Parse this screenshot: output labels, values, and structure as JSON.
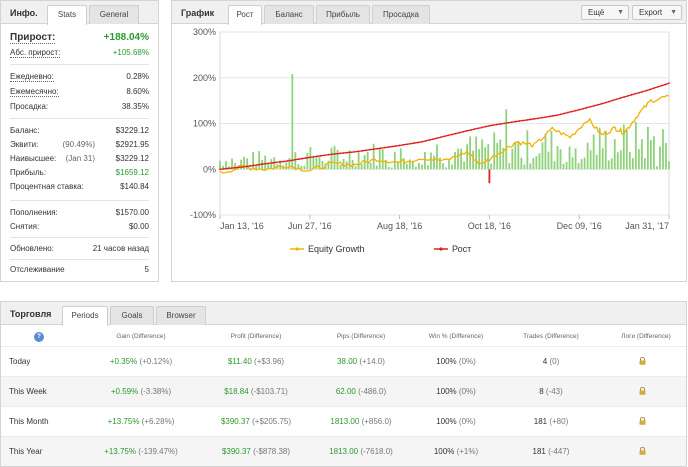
{
  "info": {
    "title": "Инфо.",
    "tabs": [
      "Stats",
      "General"
    ],
    "gain_label": "Прирост:",
    "gain_value": "+188.04%",
    "abs_label": "Абс. прирост:",
    "abs_value": "+105.68%",
    "daily_label": "Ежедневно:",
    "daily_value": "0.28%",
    "monthly_label": "Ежемесячно:",
    "monthly_value": "8.60%",
    "drawdown_label": "Просадка:",
    "drawdown_value": "38.35%",
    "balance_label": "Баланс:",
    "balance_value": "$3229.12",
    "equity_label": "Эквити:",
    "equity_pct": "(90.49%)",
    "equity_value": "$2921.95",
    "highest_label": "Наивысшее:",
    "highest_date": "(Jan 31)",
    "highest_value": "$3229.12",
    "profit_label": "Прибыль:",
    "profit_value": "$1659.12",
    "interest_label": "Процентная ставка:",
    "interest_value": "$140.84",
    "deposits_label": "Пополнения:",
    "deposits_value": "$1570.00",
    "withdrawals_label": "Снятия:",
    "withdrawals_value": "$0.00",
    "updated_label": "Обновлено:",
    "updated_value": "21 часов назад",
    "tracking_label": "Отслеживание",
    "tracking_value": "5"
  },
  "chart_panel": {
    "title": "График",
    "tabs": [
      "Рост",
      "Баланс",
      "Прибыль",
      "Просадка"
    ],
    "more_button": "Ещё",
    "export_button": "Export"
  },
  "chart_data": {
    "type": "line",
    "y_ticks": [
      "300%",
      "200%",
      "100%",
      "0%",
      "-100%"
    ],
    "ylim": [
      -100,
      300
    ],
    "x_ticks": [
      "Jan 13, '16",
      "Jun 27, '16",
      "Aug 18, '16",
      "Oct 18, '16",
      "Dec 09, '16",
      "Jan 31, '17"
    ],
    "legend": [
      "Equity Growth",
      "Рост"
    ],
    "series_colors": {
      "equity": "#f0b400",
      "growth": "#e02020",
      "bars": "#8fd27a"
    },
    "growth_points": [
      [
        0,
        0
      ],
      [
        0.05,
        5
      ],
      [
        0.1,
        12
      ],
      [
        0.15,
        18
      ],
      [
        0.2,
        26
      ],
      [
        0.25,
        33
      ],
      [
        0.3,
        38
      ],
      [
        0.35,
        45
      ],
      [
        0.4,
        52
      ],
      [
        0.45,
        60
      ],
      [
        0.5,
        72
      ],
      [
        0.55,
        84
      ],
      [
        0.6,
        95
      ],
      [
        0.65,
        103
      ],
      [
        0.7,
        110
      ],
      [
        0.75,
        118
      ],
      [
        0.8,
        130
      ],
      [
        0.85,
        143
      ],
      [
        0.9,
        158
      ],
      [
        0.95,
        172
      ],
      [
        1.0,
        188
      ]
    ],
    "equity_points": [
      [
        0,
        -8
      ],
      [
        0.05,
        5
      ],
      [
        0.1,
        0
      ],
      [
        0.15,
        8
      ],
      [
        0.2,
        -3
      ],
      [
        0.25,
        12
      ],
      [
        0.3,
        10
      ],
      [
        0.35,
        22
      ],
      [
        0.4,
        15
      ],
      [
        0.45,
        25
      ],
      [
        0.5,
        18
      ],
      [
        0.55,
        38
      ],
      [
        0.58,
        10
      ],
      [
        0.62,
        35
      ],
      [
        0.66,
        60
      ],
      [
        0.7,
        52
      ],
      [
        0.74,
        88
      ],
      [
        0.78,
        70
      ],
      [
        0.82,
        110
      ],
      [
        0.85,
        75
      ],
      [
        0.88,
        90
      ],
      [
        0.9,
        80
      ],
      [
        0.93,
        118
      ],
      [
        0.96,
        150
      ],
      [
        1.0,
        160
      ]
    ]
  },
  "trading": {
    "title": "Торговля",
    "tabs": [
      "Periods",
      "Goals",
      "Browser"
    ],
    "help_icon": "?",
    "headers": [
      "Gain (Difference)",
      "Profit (Difference)",
      "Pips (Difference)",
      "Win % (Difference)",
      "Trades (Difference)",
      "Логи (Difference)"
    ],
    "rows": [
      {
        "period": "Today",
        "gain": "+0.35%",
        "gain_diff": "(+0.12%)",
        "profit": "$11.40",
        "profit_diff": "(+$3.96)",
        "pips": "38.00",
        "pips_diff": "(+14.0)",
        "win": "100%",
        "win_diff": "(0%)",
        "trades": "4",
        "trades_diff": "(0)"
      },
      {
        "period": "This Week",
        "gain": "+0.59%",
        "gain_diff": "(-3.38%)",
        "profit": "$18.84",
        "profit_diff": "(-$103.71)",
        "pips": "62.00",
        "pips_diff": "(-486.0)",
        "win": "100%",
        "win_diff": "(0%)",
        "trades": "8",
        "trades_diff": "(-43)"
      },
      {
        "period": "This Month",
        "gain": "+13.75%",
        "gain_diff": "(+6.28%)",
        "profit": "$390.37",
        "profit_diff": "(+$205.75)",
        "pips": "1813.00",
        "pips_diff": "(+856.0)",
        "win": "100%",
        "win_diff": "(0%)",
        "trades": "181",
        "trades_diff": "(+80)"
      },
      {
        "period": "This Year",
        "gain": "+13.75%",
        "gain_diff": "(-139.47%)",
        "profit": "$390.37",
        "profit_diff": "(-$878.38)",
        "pips": "1813.00",
        "pips_diff": "(-7618.0)",
        "win": "100%",
        "win_diff": "(+1%)",
        "trades": "181",
        "trades_diff": "(-447)"
      }
    ]
  }
}
